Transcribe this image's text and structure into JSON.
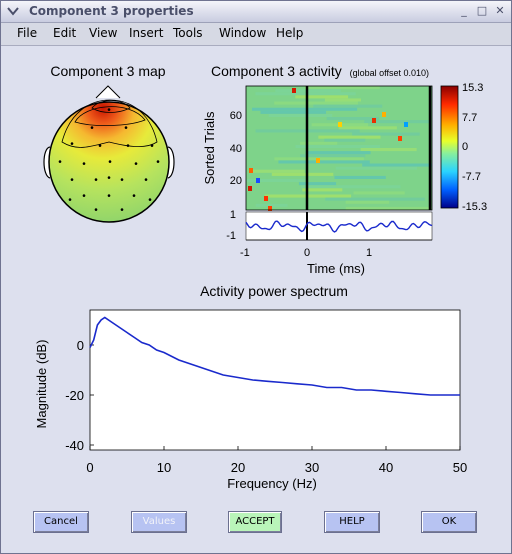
{
  "window": {
    "title": "Component 3 properties"
  },
  "menu": [
    {
      "label": "File",
      "name": "menu-file"
    },
    {
      "label": "Edit",
      "name": "menu-edit"
    },
    {
      "label": "View",
      "name": "menu-view"
    },
    {
      "label": "Insert",
      "name": "menu-insert"
    },
    {
      "label": "Tools",
      "name": "menu-tools"
    },
    {
      "label": "Window",
      "name": "menu-window"
    },
    {
      "label": "Help",
      "name": "menu-help"
    }
  ],
  "panels": {
    "map_title": "Component 3 map",
    "activity_title": "Component 3 activity",
    "activity_subtitle": "(global offset 0.010)",
    "spectrum_title": "Activity power spectrum"
  },
  "colors": {
    "map_hot": "#cc1a00",
    "spectrum_line": "#1a2acc",
    "window_bg": "#dde0ee"
  },
  "buttons": [
    {
      "label": "Cancel",
      "name": "cancel-button",
      "bg": "#b7c3f2",
      "disabled": false
    },
    {
      "label": "Values",
      "name": "values-button",
      "bg": "#b7c3f2",
      "disabled": true
    },
    {
      "label": "ACCEPT",
      "name": "accept-button",
      "bg": "#b9f5b9",
      "disabled": false
    },
    {
      "label": "HELP",
      "name": "help-button",
      "bg": "#b7c3f2",
      "disabled": false
    },
    {
      "label": "OK",
      "name": "ok-button",
      "bg": "#b7c3f2",
      "disabled": false
    }
  ],
  "chart_data": [
    {
      "type": "heatmap",
      "title": "Component 3 activity",
      "subtitle": "(global offset 0.010)",
      "ylabel": "Sorted Trials",
      "ylim": [
        0,
        80
      ],
      "yticks": [
        "20",
        "40",
        "60"
      ],
      "colorbar": {
        "ticks": [
          "15.3",
          "7.7",
          "0",
          "-7.7",
          "-15.3"
        ],
        "range": [
          -15.3,
          15.3
        ]
      },
      "markers": [
        0,
        1.95
      ]
    },
    {
      "type": "line",
      "xlabel": "Time (ms)",
      "xticks": [
        "-1",
        "0",
        "1"
      ],
      "yticks": [
        "1",
        "-1"
      ],
      "xlim": [
        -1,
        2
      ],
      "ylim": [
        -1,
        1
      ]
    },
    {
      "type": "line",
      "title": "Activity power spectrum",
      "xlabel": "Frequency (Hz)",
      "ylabel": "Magnitude (dB)",
      "xlim": [
        0,
        50
      ],
      "ylim": [
        -42,
        14
      ],
      "xticks": [
        "0",
        "10",
        "20",
        "30",
        "40",
        "50"
      ],
      "yticks": [
        "0",
        "-20",
        "-40"
      ],
      "series": [
        {
          "x": [
            0,
            0.5,
            1,
            1.5,
            2,
            3,
            4,
            5,
            6,
            7,
            8,
            9,
            10,
            12,
            14,
            16,
            18,
            20,
            22,
            24,
            26,
            28,
            30,
            32,
            34,
            36,
            38,
            40,
            42,
            44,
            46,
            48,
            50
          ],
          "values": [
            -1,
            2,
            8,
            10,
            11,
            9,
            7,
            5,
            3,
            1,
            0,
            -2,
            -3,
            -6,
            -8,
            -10,
            -12,
            -13,
            -14,
            -14.5,
            -15,
            -15.5,
            -16,
            -17,
            -17,
            -18,
            -18,
            -18.5,
            -19,
            -19.5,
            -20,
            -20,
            -20
          ]
        }
      ]
    }
  ]
}
